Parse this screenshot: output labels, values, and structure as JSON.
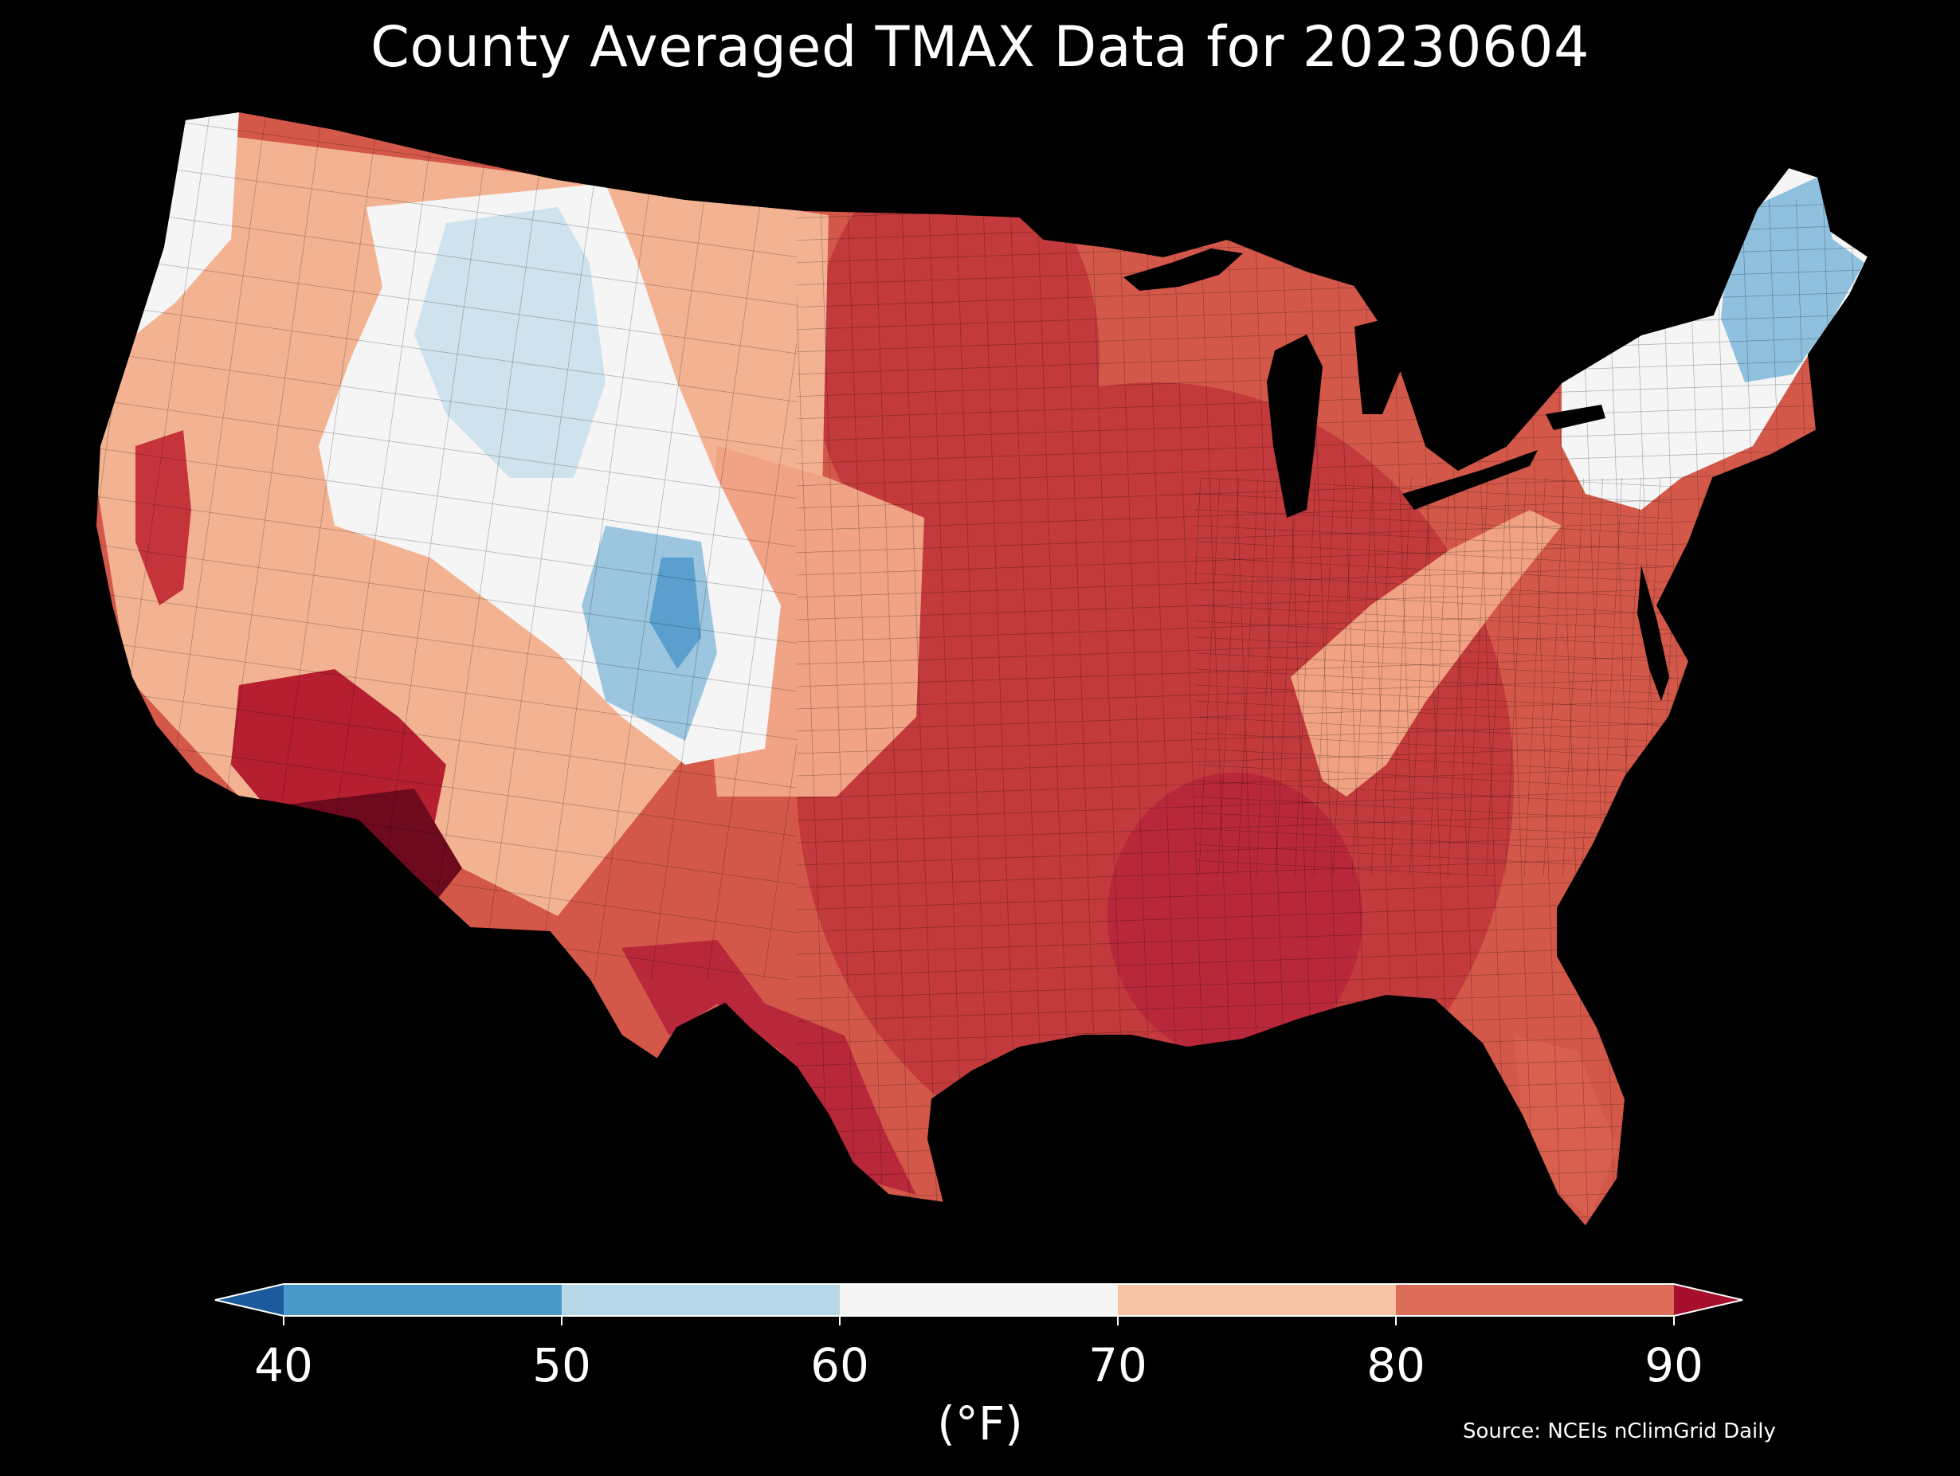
{
  "title": "County Averaged TMAX Data for 20230604",
  "colorbar": {
    "ticks": [
      "40",
      "50",
      "60",
      "70",
      "80",
      "90"
    ],
    "unit": "(°F)",
    "bins": [
      {
        "from": null,
        "to": 40,
        "color": "#1c5a9e"
      },
      {
        "from": 40,
        "to": 50,
        "color": "#4a98c9"
      },
      {
        "from": 50,
        "to": 60,
        "color": "#b6d7e8"
      },
      {
        "from": 60,
        "to": 70,
        "color": "#f5f5f5"
      },
      {
        "from": 70,
        "to": 80,
        "color": "#f6c3a7"
      },
      {
        "from": 80,
        "to": 90,
        "color": "#dc6e57"
      },
      {
        "from": 90,
        "to": null,
        "color": "#a50f2b"
      }
    ]
  },
  "source": "Source: NCEIs nClimGrid Daily",
  "map": {
    "region": "Contiguous United States",
    "level_of_detail": "county",
    "variable": "TMAX",
    "background": "#000000",
    "regional_values_F": [
      {
        "region": "Desert Southwest (SW Arizona)",
        "bin": ">90"
      },
      {
        "region": "Central California Valley",
        "bin": "80-90"
      },
      {
        "region": "Pacific Northwest coast",
        "bin": "60-70"
      },
      {
        "region": "Northern Rockies / Wyoming",
        "bin": "50-60"
      },
      {
        "region": "Colorado Front Range",
        "bin": "40-50"
      },
      {
        "region": "Northern Great Plains",
        "bin": "80-90"
      },
      {
        "region": "Mississippi Valley / Midwest",
        "bin": "80-90"
      },
      {
        "region": "Southeast",
        "bin": "80-90"
      },
      {
        "region": "Appalachians",
        "bin": "70-80"
      },
      {
        "region": "New England / Maine",
        "bin": "50-60"
      },
      {
        "region": "Texas",
        "bin": "80-90"
      },
      {
        "region": "Florida",
        "bin": "80-90"
      }
    ]
  }
}
